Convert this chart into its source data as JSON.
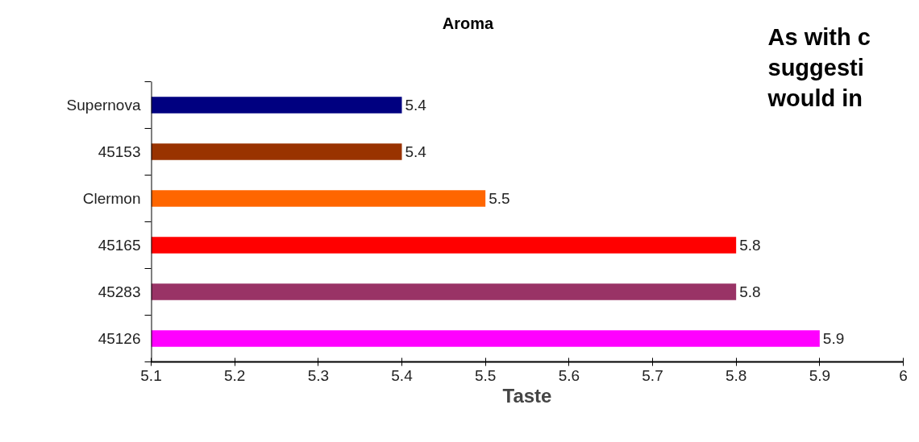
{
  "chart_data": {
    "type": "bar",
    "orientation": "horizontal",
    "title": "Aroma",
    "xlabel": "Taste",
    "categories": [
      "Supernova",
      "45153",
      "Clermon",
      "45165",
      "45283",
      "45126"
    ],
    "values": [
      5.4,
      5.4,
      5.5,
      5.8,
      5.8,
      5.9
    ],
    "colors": [
      "#000080",
      "#993300",
      "#ff6600",
      "#ff0000",
      "#993366",
      "#ff00ff"
    ],
    "xlim": [
      5.1,
      6.0
    ],
    "xticks": [
      5.1,
      5.2,
      5.3,
      5.4,
      5.5,
      5.6,
      5.7,
      5.8,
      5.9,
      {
        "value": 6.0,
        "label": "6"
      }
    ],
    "data_labels": true,
    "grid": false,
    "annotations": [
      "As with c",
      "suggesti",
      "would in"
    ]
  }
}
